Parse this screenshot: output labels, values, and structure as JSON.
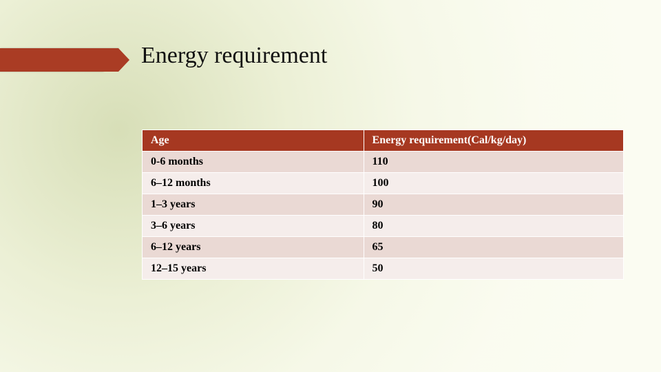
{
  "title": "Energy requirement",
  "accent_color": "#aa3c24",
  "table": {
    "type": "table",
    "header_bg": "#a63821",
    "header_fg": "#ffffff",
    "row_alt_bg": [
      "#ead9d4",
      "#f5edeb"
    ],
    "border_color": "#ffffff",
    "font_family": "Times New Roman",
    "header_fontsize": 16,
    "cell_fontsize": 16,
    "col_widths_pct": [
      46,
      54
    ],
    "columns": [
      "Age",
      "Energy requirement(Cal/kg/day)"
    ],
    "rows": [
      [
        "0-6 months",
        "110"
      ],
      [
        "6–12 months",
        "100"
      ],
      [
        "1–3 years",
        "90"
      ],
      [
        "3–6 years",
        "80"
      ],
      [
        "6–12 years",
        "65"
      ],
      [
        "12–15 years",
        "50"
      ]
    ]
  }
}
